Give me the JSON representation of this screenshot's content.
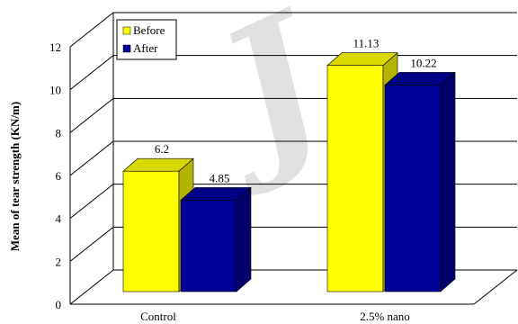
{
  "chart_data": {
    "type": "bar",
    "categories": [
      "Control",
      "2.5% nano"
    ],
    "series": [
      {
        "name": "Before",
        "values": [
          6.2,
          11.13
        ],
        "color": "#ffff00"
      },
      {
        "name": "After",
        "values": [
          4.85,
          10.22
        ],
        "color": "#000099"
      }
    ],
    "value_labels": [
      [
        "6.2",
        "11.13"
      ],
      [
        "4.85",
        "10.22"
      ]
    ],
    "ylabel": "Mean of tear strength (KN/m)",
    "xlabel": "",
    "ylim": [
      0,
      12
    ],
    "yticks": [
      "0",
      "2",
      "4",
      "6",
      "8",
      "10",
      "12"
    ],
    "legend_position": "top-left",
    "grid": true,
    "style": "3d-clustered-column"
  },
  "watermark": {
    "text": "J",
    "color": "#000000"
  }
}
